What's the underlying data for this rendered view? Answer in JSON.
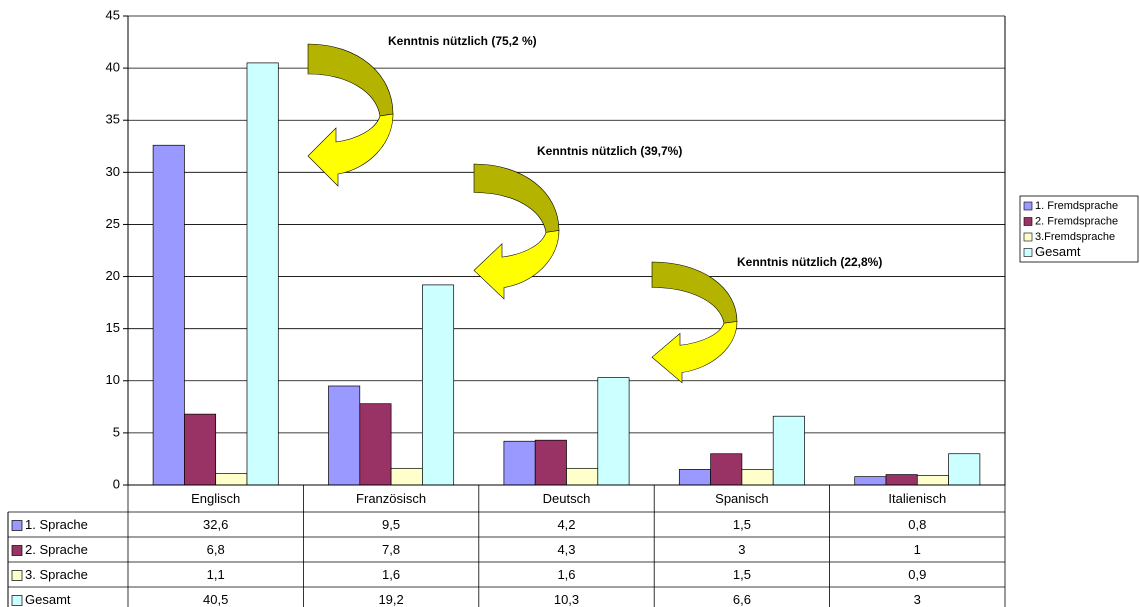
{
  "chart_data": {
    "type": "bar",
    "categories": [
      "Englisch",
      "Französisch",
      "Deutsch",
      "Spanisch",
      "Italienisch"
    ],
    "series": [
      {
        "name": "1. Sprache",
        "color": "#9999ff",
        "values": [
          32.6,
          9.5,
          4.2,
          1.5,
          0.8
        ],
        "value_labels": [
          "32,6",
          "9,5",
          "4,2",
          "1,5",
          "0,8"
        ]
      },
      {
        "name": "2. Sprache",
        "color": "#993366",
        "values": [
          6.8,
          7.8,
          4.3,
          3,
          1
        ],
        "value_labels": [
          "6,8",
          "7,8",
          "4,3",
          "3",
          "1"
        ]
      },
      {
        "name": "3. Sprache",
        "color": "#ffffcc",
        "values": [
          1.1,
          1.6,
          1.6,
          1.5,
          0.9
        ],
        "value_labels": [
          "1,1",
          "1,6",
          "1,6",
          "1,5",
          "0,9"
        ]
      },
      {
        "name": "Gesamt",
        "color": "#ccffff",
        "values": [
          40.5,
          19.2,
          10.3,
          6.6,
          3
        ],
        "value_labels": [
          "40,5",
          "19,2",
          "10,3",
          "6,6",
          "3"
        ]
      }
    ],
    "legend": [
      "1. Fremdsprache",
      "2. Fremdsprache",
      "3.Fremdsprache",
      "Gesamt"
    ],
    "annotations": [
      "Kenntnis nützlich (75,2 %)",
      "Kenntnis nützlich (39,7%)",
      "Kenntnis nützlich (22,8%)"
    ],
    "ylim": [
      0,
      45
    ],
    "yticks": [
      0,
      5,
      10,
      15,
      20,
      25,
      30,
      35,
      40,
      45
    ],
    "grid": true,
    "legend_position": "right"
  }
}
